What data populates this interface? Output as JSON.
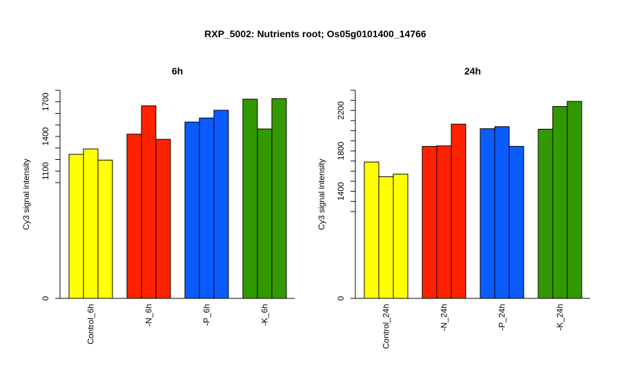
{
  "title": "RXP_5002: Nutrients root; Os05g0101400_14766",
  "colors": {
    "control": "#ffff00",
    "minus_n": "#ff2200",
    "minus_p": "#0a5cff",
    "minus_k": "#339900",
    "axis": "#000000"
  },
  "chart_data": [
    {
      "type": "bar",
      "title": "6h",
      "ylabel": "Cy3 signal intensity",
      "axis_type": "broken",
      "ylim_visible": [
        0,
        1800
      ],
      "yticks": [
        0,
        1100,
        1400,
        1700
      ],
      "categories": [
        "Control_6h",
        "-N_6h",
        "-P_6h",
        "-K_6h"
      ],
      "series_values": [
        [
          1245,
          1292,
          1195
        ],
        [
          1420,
          1665,
          1375
        ],
        [
          1525,
          1560,
          1627
        ],
        [
          1723,
          1465,
          1728
        ]
      ],
      "group_colors": [
        "control",
        "minus_n",
        "minus_p",
        "minus_k"
      ]
    },
    {
      "type": "bar",
      "title": "24h",
      "ylabel": "Cy3 signal intensity",
      "axis_type": "broken",
      "ylim_visible": [
        0,
        2400
      ],
      "yticks": [
        0,
        1400,
        1800,
        2200
      ],
      "categories": [
        "Control_24h",
        "-N_24h",
        "-P_24h",
        "-K_24h"
      ],
      "series_values": [
        [
          1690,
          1545,
          1570
        ],
        [
          1845,
          1850,
          2065
        ],
        [
          2020,
          2040,
          1845
        ],
        [
          2015,
          2240,
          2290
        ]
      ],
      "group_colors": [
        "control",
        "minus_n",
        "minus_p",
        "minus_k"
      ]
    }
  ]
}
